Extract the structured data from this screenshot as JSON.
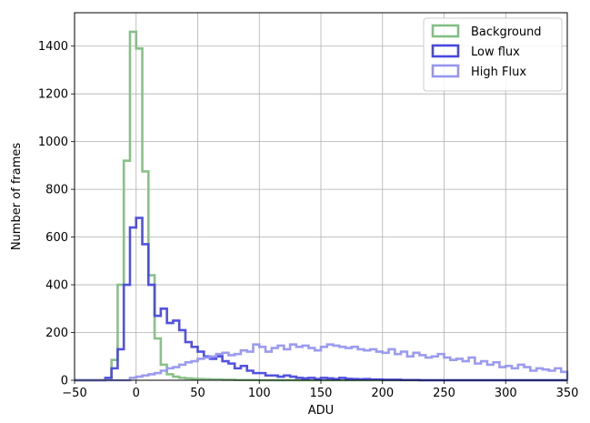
{
  "chart_data": {
    "type": "histogram",
    "title": "",
    "xlabel": "ADU",
    "ylabel": "Number of frames",
    "xlim": [
      -50,
      350
    ],
    "ylim": [
      0,
      1540
    ],
    "x_ticks": [
      -50,
      0,
      50,
      100,
      150,
      200,
      250,
      300,
      350
    ],
    "x_tick_labels": [
      "−50",
      "0",
      "50",
      "100",
      "150",
      "200",
      "250",
      "300",
      "350"
    ],
    "y_ticks": [
      0,
      200,
      400,
      600,
      800,
      1000,
      1200,
      1400
    ],
    "y_tick_labels": [
      "0",
      "200",
      "400",
      "600",
      "800",
      "1000",
      "1200",
      "1400"
    ],
    "grid": true,
    "legend_position": "upper right",
    "bin_width": 5,
    "series": [
      {
        "name": "Background",
        "color": "#82bf82",
        "bin_start": -25,
        "values": [
          5,
          85,
          400,
          920,
          1460,
          1390,
          875,
          440,
          175,
          65,
          25,
          15,
          10,
          8,
          6,
          5,
          4,
          3,
          3,
          2,
          2,
          1,
          1,
          1,
          1,
          0,
          0,
          0,
          0,
          0
        ]
      },
      {
        "name": "Low flux",
        "color": "#4848e0",
        "bin_start": -25,
        "values": [
          10,
          50,
          130,
          400,
          640,
          680,
          570,
          400,
          270,
          300,
          240,
          250,
          210,
          160,
          140,
          120,
          100,
          90,
          100,
          80,
          70,
          50,
          60,
          40,
          30,
          30,
          20,
          20,
          15,
          20,
          15,
          10,
          8,
          10,
          5,
          10,
          8,
          5,
          10,
          6,
          5,
          4,
          5,
          3,
          3,
          2,
          2,
          2,
          1,
          1,
          1
        ]
      },
      {
        "name": "High Flux",
        "color": "#9696f0",
        "bin_start": -5,
        "values": [
          10,
          15,
          20,
          25,
          30,
          40,
          50,
          55,
          65,
          75,
          80,
          90,
          95,
          100,
          110,
          115,
          105,
          110,
          125,
          120,
          150,
          140,
          120,
          135,
          145,
          130,
          150,
          140,
          145,
          135,
          125,
          140,
          150,
          145,
          140,
          135,
          140,
          130,
          125,
          130,
          120,
          115,
          130,
          110,
          120,
          100,
          115,
          105,
          95,
          100,
          110,
          95,
          85,
          90,
          80,
          95,
          70,
          80,
          65,
          75,
          55,
          60,
          50,
          65,
          55,
          40,
          50,
          45,
          40,
          50,
          35,
          30,
          40,
          30,
          25,
          20,
          15
        ]
      }
    ]
  }
}
